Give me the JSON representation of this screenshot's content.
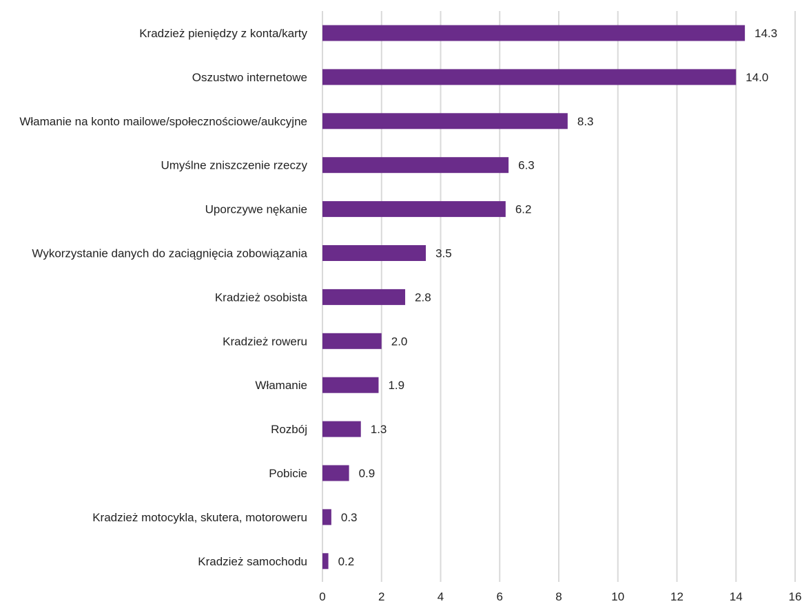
{
  "chart_data": {
    "type": "bar",
    "orientation": "horizontal",
    "categories": [
      "Kradzież pieniędzy z konta/karty",
      "Oszustwo internetowe",
      "Włamanie na konto mailowe/społecznościowe/aukcyjne",
      "Umyślne zniszczenie rzeczy",
      "Uporczywe nękanie",
      "Wykorzystanie danych do zaciągnięcia zobowiązania",
      "Kradzież osobista",
      "Kradzież roweru",
      "Włamanie",
      "Rozbój",
      "Pobicie",
      "Kradzież motocykla, skutera, motoroweru",
      "Kradzież samochodu"
    ],
    "values": [
      14.3,
      14.0,
      8.3,
      6.3,
      6.2,
      3.5,
      2.8,
      2.0,
      1.9,
      1.3,
      0.9,
      0.3,
      0.2
    ],
    "value_labels": [
      "14.3",
      "14.0",
      "8.3",
      "6.3",
      "6.2",
      "3.5",
      "2.8",
      "2.0",
      "1.9",
      "1.3",
      "0.9",
      "0.3",
      "0.2"
    ],
    "xlim": [
      0,
      16
    ],
    "x_ticks": [
      0,
      2,
      4,
      6,
      8,
      10,
      12,
      14,
      16
    ],
    "grid": true,
    "legend": "none",
    "title": "",
    "xlabel": "",
    "ylabel": "",
    "bar_color": "#6a2c8a",
    "grid_color": "#d9d9d9",
    "text_color": "#222222"
  }
}
